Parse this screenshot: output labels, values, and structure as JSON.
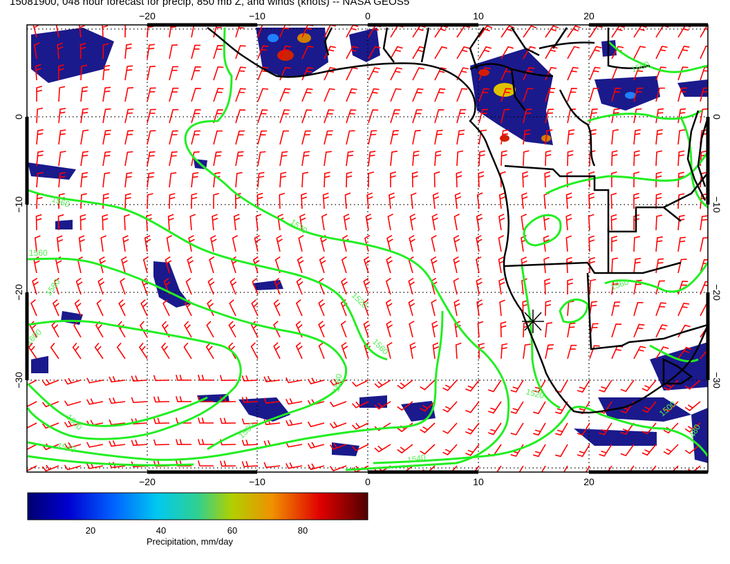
{
  "title": "15081900, 048 hour forecast for precip, 850 mb Z, and winds (knots) -- NASA GEOS5",
  "map": {
    "lon_range": [
      -30,
      31
    ],
    "lat_range": [
      -40,
      10
    ],
    "lon_ticks": [
      -20,
      -10,
      0,
      10,
      20
    ],
    "lat_ticks": [
      0,
      -10,
      -20,
      -30
    ],
    "top_lon_labels": [
      "−20",
      "−10",
      "0",
      "10",
      "20"
    ],
    "bottom_lon_labels": [
      "−20",
      "−10",
      "0",
      "10",
      "20"
    ],
    "left_lat_labels": [
      "0",
      "−10",
      "−20",
      "−30"
    ],
    "right_lat_labels": [
      "0",
      "−10",
      "−20",
      "−30"
    ],
    "contour_labels": [
      "1560",
      "1520",
      "1580",
      "1560",
      "1520",
      "1600",
      "1560",
      "1580",
      "1600",
      "1560",
      "1540",
      "1540",
      "1520",
      "1500",
      "1480",
      "1560",
      "1560"
    ],
    "marker": {
      "name": "asterisk-marker",
      "lon": 15,
      "lat": -23.5
    },
    "colors": {
      "wind_barbs": "#ff0000",
      "height_contours": "#22ee22",
      "coastlines": "#000000",
      "precip_low": "#1a1a8c",
      "precip_high": "#cc0000"
    }
  },
  "colorbar": {
    "label": "Precipitation, mm/day",
    "ticks": [
      "20",
      "40",
      "60",
      "80"
    ],
    "tick_values": [
      20,
      40,
      60,
      80
    ],
    "range": [
      0,
      100
    ],
    "colors": [
      "#000080",
      "#0000ff",
      "#0080ff",
      "#00e0e0",
      "#40e040",
      "#d0d000",
      "#ff8000",
      "#e00000",
      "#600000"
    ]
  }
}
